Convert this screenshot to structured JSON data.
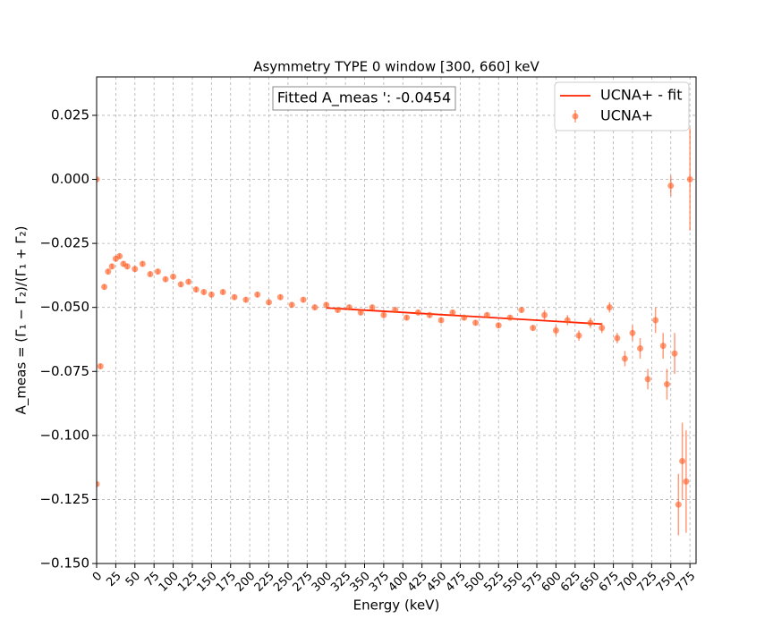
{
  "chart_data": {
    "type": "errorbar-scatter",
    "title": "Asymmetry TYPE 0 window [300, 660] keV",
    "xlabel": "Energy (keV)",
    "ylabel": "A_meas = (Γ₁ − Γ₂)/(Γ₁ + Γ₂)",
    "annotation": "Fitted A_meas ': -0.0454",
    "xlim": [
      0,
      783
    ],
    "ylim": [
      -0.15,
      0.04
    ],
    "xticks": [
      0,
      25,
      50,
      75,
      100,
      125,
      150,
      175,
      200,
      225,
      250,
      275,
      300,
      325,
      350,
      375,
      400,
      425,
      450,
      475,
      500,
      525,
      550,
      575,
      600,
      625,
      650,
      675,
      700,
      725,
      750,
      775
    ],
    "yticks": [
      {
        "value": -0.15,
        "label": "−0.150"
      },
      {
        "value": -0.125,
        "label": "−0.125"
      },
      {
        "value": -0.1,
        "label": "−0.100"
      },
      {
        "value": -0.075,
        "label": "−0.075"
      },
      {
        "value": -0.05,
        "label": "−0.050"
      },
      {
        "value": -0.025,
        "label": "−0.025"
      },
      {
        "value": 0,
        "label": "0.000"
      },
      0.025
    ],
    "grid": true,
    "legend": "upper right",
    "series": [
      {
        "name": "UCNA+ - fit",
        "kind": "line",
        "color": "#ff2200",
        "x": [
          300,
          660
        ],
        "values": [
          -0.0502,
          -0.0565
        ]
      },
      {
        "name": "UCNA+",
        "kind": "errorbar",
        "color": "#ff5a1f",
        "x": [
          0,
          0,
          5,
          10,
          15,
          20,
          25,
          30,
          35,
          40,
          50,
          60,
          70,
          80,
          90,
          100,
          110,
          120,
          130,
          140,
          150,
          165,
          180,
          195,
          210,
          225,
          240,
          255,
          270,
          285,
          300,
          315,
          330,
          345,
          360,
          375,
          390,
          405,
          420,
          435,
          450,
          465,
          480,
          495,
          510,
          525,
          540,
          555,
          570,
          585,
          600,
          615,
          630,
          645,
          660,
          670,
          680,
          690,
          700,
          710,
          720,
          730,
          740,
          745,
          750,
          755,
          760,
          765,
          770,
          775
        ],
        "values": [
          0.0,
          -0.119,
          -0.073,
          -0.042,
          -0.036,
          -0.034,
          -0.031,
          -0.03,
          -0.033,
          -0.034,
          -0.035,
          -0.033,
          -0.037,
          -0.036,
          -0.039,
          -0.038,
          -0.041,
          -0.04,
          -0.043,
          -0.044,
          -0.045,
          -0.044,
          -0.046,
          -0.047,
          -0.045,
          -0.048,
          -0.046,
          -0.049,
          -0.047,
          -0.05,
          -0.049,
          -0.051,
          -0.05,
          -0.052,
          -0.05,
          -0.053,
          -0.051,
          -0.054,
          -0.052,
          -0.053,
          -0.055,
          -0.052,
          -0.054,
          -0.056,
          -0.053,
          -0.057,
          -0.054,
          -0.051,
          -0.058,
          -0.053,
          -0.059,
          -0.055,
          -0.061,
          -0.056,
          -0.058,
          -0.05,
          -0.062,
          -0.07,
          -0.06,
          -0.066,
          -0.078,
          -0.055,
          -0.065,
          -0.08,
          -0.0025,
          -0.068,
          -0.127,
          -0.11,
          -0.118,
          0.0
        ],
        "errors": [
          0.0005,
          0.0008,
          0.001,
          0.001,
          0.001,
          0.001,
          0.001,
          0.001,
          0.001,
          0.001,
          0.001,
          0.001,
          0.001,
          0.001,
          0.001,
          0.001,
          0.001,
          0.001,
          0.001,
          0.001,
          0.001,
          0.001,
          0.001,
          0.001,
          0.001,
          0.001,
          0.001,
          0.001,
          0.001,
          0.001,
          0.001,
          0.001,
          0.001,
          0.001,
          0.001,
          0.001,
          0.001,
          0.001,
          0.001,
          0.001,
          0.001,
          0.001,
          0.001,
          0.001,
          0.001,
          0.001,
          0.001,
          0.001,
          0.001,
          0.002,
          0.002,
          0.002,
          0.002,
          0.002,
          0.002,
          0.002,
          0.002,
          0.003,
          0.003,
          0.004,
          0.004,
          0.005,
          0.005,
          0.006,
          0.004,
          0.008,
          0.012,
          0.015,
          0.02,
          0.02
        ]
      }
    ]
  }
}
